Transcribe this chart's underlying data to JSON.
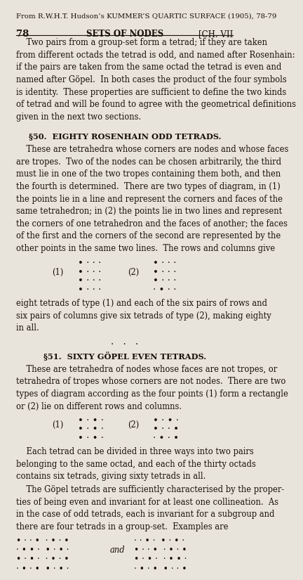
{
  "bg_color": "#e8e4dc",
  "text_color": "#1a1008",
  "fig_width": 4.33,
  "fig_height": 8.6,
  "header": "From R.W.H.T. Hudson’s KUMMER’S QUARTIC SURFACE (1905), 78-79",
  "page_num": "78",
  "page_center": "SETS OF NODES",
  "page_right": "[CH. VII",
  "para1_lines": [
    "    Two pairs from a group-set form a tetrad; if they are taken",
    "from different octads the tetrad is odd, and named after Rosenhain:",
    "if the pairs are taken from the same octad the tetrad is even and",
    "named after Göpel.  In both cases the product of the four symbols",
    "is identity.  These properties are sufficient to define the two kinds",
    "of tetrad and will be found to agree with the geometrical definitions",
    "given in the next two sections."
  ],
  "sec50_title": "§50.  EIGHTY ROSENHAIN ODD TETRADS.",
  "para2_lines": [
    "    These are tetrahedra whose corners are nodes and whose faces",
    "are tropes.  Two of the nodes can be chosen arbitrarily, the third",
    "must lie in one of the two tropes containing them both, and then",
    "the fourth is determined.  There are two types of diagram, in (1)",
    "the points lie in a line and represent the corners and faces of the",
    "same tetrahedron; in (2) the points lie in two lines and represent",
    "the corners of one tetrahedron and the faces of another; the faces",
    "of the first and the corners of the second are represented by the",
    "other points in the same two lines.  The rows and columns give"
  ],
  "dot50_1": [
    "• · · ·",
    "• · · ·",
    "• · · ·",
    "• · · ·"
  ],
  "dot50_2": [
    "• · · ·",
    "• · · ·",
    "• · · ·",
    "· • · ·"
  ],
  "para3_lines": [
    "eight tetrads of type (1) and each of the six pairs of rows and",
    "six pairs of columns give six tetrads of type (2), making eighty",
    "in all."
  ],
  "sep_dots": "·   ·   ·",
  "sec51_title": "§51.  SIXTY GÖPEL EVEN TETRADS.",
  "para4_lines": [
    "    These are tetrahedra of nodes whose faces are not tropes, or",
    "tetrahedra of tropes whose corners are not nodes.  There are two",
    "types of diagram according as the four points (1) form a rectangle",
    "or (2) lie on different rows and columns."
  ],
  "dot51_1": [
    "• · • ·",
    "• · • ·",
    "• · • ·"
  ],
  "dot51_2": [
    "• · • ·",
    "• · · •",
    "· • · •"
  ],
  "para5_lines": [
    "    Each tetrad can be divided in three ways into two pairs",
    "belonging to the same octad, and each of the thirty octads",
    "contains six tetrads, giving sixty tetrads in all."
  ],
  "para6_lines": [
    "    The Göpel tetrads are sufficiently characterised by the proper-",
    "ties of being even and invariant for at least one collineation.  As",
    "in the case of odd tetrads, each is invariant for a subgroup and",
    "there are four tetrads in a group-set.  Examples are"
  ],
  "bottom_left": [
    "• · · •  · • · •",
    "· • • ·  • · • ·",
    "• · • ·  · • · •",
    "· • · •  • · • ·"
  ],
  "bottom_right": [
    "· · • ·  • · • ·",
    "• · · •  · • · •",
    "• · • ·  · • • ·",
    "· • · •  • · · •"
  ]
}
